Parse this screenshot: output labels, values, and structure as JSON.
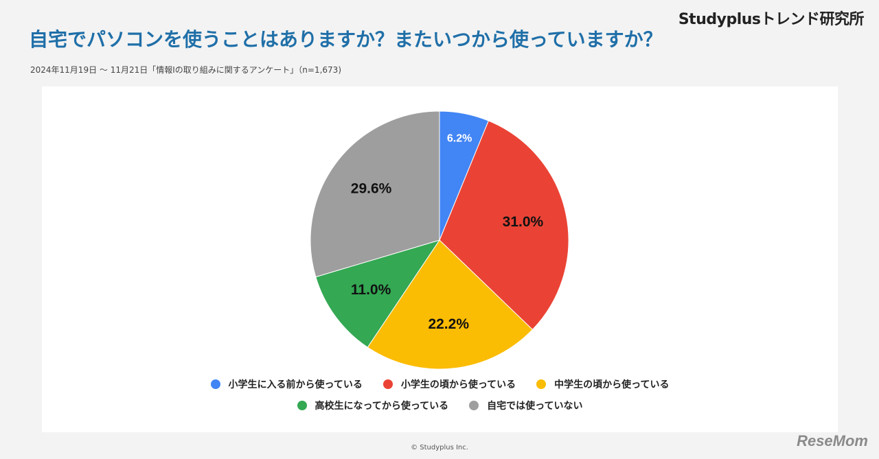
{
  "brand": "Studyplusトレンド研究所",
  "title": "自宅でパソコンを使うことはありますか？またいつから使っていますか？",
  "subtitle": "2024年11月19日 ～ 11月21日「情報Ⅰの取り組みに関するアンケート」（n=1,673)",
  "copyright": "© Studyplus Inc.",
  "watermark": "ReseMom",
  "chart_data": {
    "type": "pie",
    "title": "",
    "legend_position": "bottom",
    "slices": [
      {
        "label": "小学生に入る前から使っている",
        "value": 6.2,
        "display": "6.2%",
        "color": "#4285f4",
        "label_color": "#ffffff"
      },
      {
        "label": "小学生の頃から使っている",
        "value": 31.0,
        "display": "31.0%",
        "color": "#ea4335",
        "label_color": "#111111"
      },
      {
        "label": "中学生の頃から使っている",
        "value": 22.2,
        "display": "22.2%",
        "color": "#fbbc04",
        "label_color": "#111111"
      },
      {
        "label": "高校生になってから使っている",
        "value": 11.0,
        "display": "11.0%",
        "color": "#34a853",
        "label_color": "#111111"
      },
      {
        "label": "自宅では使っていない",
        "value": 29.6,
        "display": "29.6%",
        "color": "#9e9e9e",
        "label_color": "#111111"
      }
    ]
  }
}
